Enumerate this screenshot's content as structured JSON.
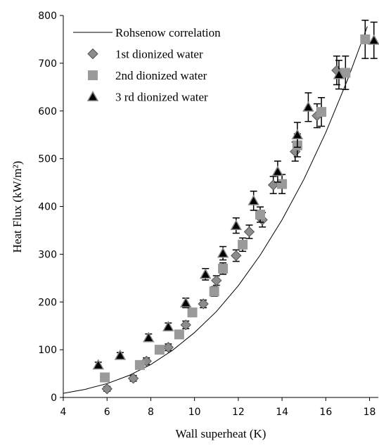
{
  "chart_data": {
    "type": "scatter",
    "xlabel": "Wall superheat (K)",
    "ylabel": "Heat Flux (kW/m²)",
    "xlim": [
      4,
      18.4
    ],
    "ylim": [
      0,
      800
    ],
    "xticks": [
      4,
      6,
      8,
      10,
      12,
      14,
      16,
      18
    ],
    "yticks": [
      0,
      100,
      200,
      300,
      400,
      500,
      600,
      700,
      800
    ],
    "legend": "upper left",
    "series": [
      {
        "name": "Rohsenow correlation",
        "style": "line",
        "color": "#000000",
        "x": [
          4,
          5,
          6,
          7,
          8,
          9,
          10,
          11,
          12,
          13,
          14,
          15,
          16,
          17,
          17.9
        ],
        "values": [
          8.7,
          17,
          29,
          46,
          69,
          99,
          136,
          180,
          234,
          298,
          372,
          457,
          555,
          666,
          777
        ]
      },
      {
        "name": "1st dionized water",
        "style": "marker",
        "marker": "diamond",
        "color": "#8c8c8c",
        "x": [
          6.0,
          7.2,
          7.8,
          8.8,
          9.6,
          10.4,
          11.0,
          11.9,
          12.5,
          13.1,
          13.6,
          14.6,
          15.6,
          16.5
        ],
        "values": [
          18,
          40,
          76,
          105,
          152,
          196,
          245,
          297,
          347,
          372,
          445,
          515,
          590,
          685
        ],
        "errors": [
          5,
          6,
          7,
          7,
          8,
          8,
          10,
          12,
          14,
          15,
          18,
          20,
          25,
          30
        ]
      },
      {
        "name": "2nd dionized water",
        "style": "marker",
        "marker": "square",
        "color": "#9a9a9a",
        "x": [
          5.9,
          7.5,
          8.4,
          9.3,
          9.9,
          10.9,
          11.3,
          12.2,
          13.0,
          14.0,
          14.7,
          15.8,
          16.9,
          17.8
        ],
        "values": [
          42,
          68,
          100,
          132,
          178,
          222,
          270,
          320,
          383,
          447,
          528,
          598,
          680,
          750
        ],
        "errors": [
          5,
          6,
          7,
          8,
          8,
          10,
          12,
          14,
          16,
          20,
          24,
          30,
          35,
          40
        ]
      },
      {
        "name": "3 rd dionized water",
        "style": "marker",
        "marker": "triangle",
        "color": "#000000",
        "x": [
          5.6,
          6.6,
          7.9,
          8.8,
          9.6,
          10.5,
          11.3,
          11.9,
          12.7,
          13.8,
          14.7,
          15.2,
          16.6,
          18.2
        ],
        "values": [
          68,
          88,
          125,
          148,
          198,
          258,
          302,
          360,
          412,
          473,
          550,
          608,
          676,
          748
        ],
        "errors": [
          6,
          6,
          8,
          8,
          10,
          12,
          14,
          16,
          20,
          22,
          26,
          30,
          30,
          38
        ]
      }
    ]
  }
}
